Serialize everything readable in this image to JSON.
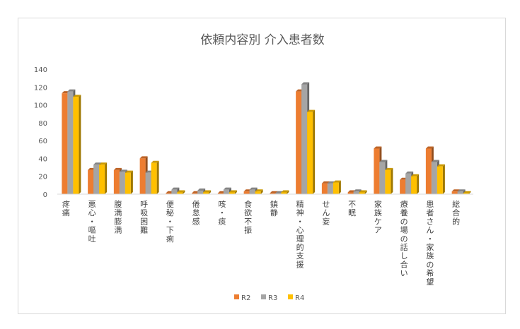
{
  "chart_data": {
    "type": "bar",
    "title": "依頼内容別 介入患者数",
    "categories": [
      "疼痛",
      "悪心・嘔吐",
      "腹満膨満",
      "呼吸困難",
      "便秘・下痢",
      "倦怠感",
      "咳・痰",
      "食欲不振",
      "鎮静",
      "精神・心理的支援",
      "せん妄",
      "不眠",
      "家族ケア",
      "療養の場の話し合い",
      "患者さん・家族の希望",
      "総合的"
    ],
    "series": [
      {
        "name": "R2",
        "color": "#ED7D31",
        "values": [
          113,
          27,
          27,
          40,
          1,
          1,
          1,
          3,
          1,
          115,
          12,
          2,
          51,
          16,
          51,
          3
        ]
      },
      {
        "name": "R3",
        "color": "#A5A5A5",
        "values": [
          115,
          33,
          25,
          24,
          5,
          4,
          5,
          5,
          1,
          123,
          12,
          3,
          36,
          23,
          36,
          3
        ]
      },
      {
        "name": "R4",
        "color": "#FFC000",
        "values": [
          109,
          33,
          24,
          35,
          2,
          2,
          2,
          3,
          2,
          92,
          13,
          2,
          27,
          20,
          31,
          1
        ]
      }
    ],
    "yticks": [
      "0",
      "20",
      "40",
      "60",
      "80",
      "100",
      "120",
      "140"
    ],
    "ylim": [
      0,
      140
    ],
    "legend_position": "bottom",
    "grid": false
  }
}
